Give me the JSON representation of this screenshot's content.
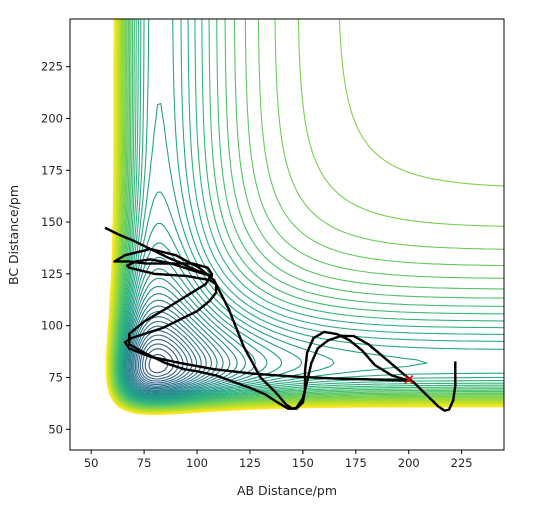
{
  "chart_data": {
    "type": "contour",
    "title": "",
    "xlabel": "AB Distance/pm",
    "ylabel": "BC Distance/pm",
    "xlim": [
      40,
      245
    ],
    "ylim": [
      40,
      248
    ],
    "xticks": [
      50,
      75,
      100,
      125,
      150,
      175,
      200,
      225
    ],
    "yticks": [
      50,
      75,
      100,
      125,
      150,
      175,
      200,
      225
    ],
    "grid": false,
    "legend": "none",
    "colormap": "viridis",
    "contour_levels": 64,
    "contour_field": "LEPS potential energy surface",
    "trajectory": {
      "color": "#000000",
      "marker": "small dots",
      "points": [
        [
          57,
          147
        ],
        [
          63,
          144
        ],
        [
          70,
          141
        ],
        [
          78,
          137
        ],
        [
          86,
          133
        ],
        [
          93,
          130
        ],
        [
          99,
          127
        ],
        [
          104,
          125
        ],
        [
          107,
          124
        ],
        [
          100,
          126
        ],
        [
          88,
          130
        ],
        [
          78,
          132
        ],
        [
          71,
          131
        ],
        [
          67,
          129
        ],
        [
          68,
          128
        ],
        [
          80,
          125
        ],
        [
          95,
          124
        ],
        [
          106,
          122
        ],
        [
          109,
          120
        ],
        [
          109,
          116
        ],
        [
          106,
          112
        ],
        [
          100,
          107
        ],
        [
          92,
          103
        ],
        [
          84,
          99
        ],
        [
          75,
          96
        ],
        [
          69,
          94
        ],
        [
          66,
          92
        ],
        [
          68,
          89
        ],
        [
          78,
          85
        ],
        [
          92,
          82
        ],
        [
          108,
          79
        ],
        [
          125,
          77
        ],
        [
          145,
          75.5
        ],
        [
          165,
          74.5
        ],
        [
          185,
          74
        ],
        [
          200,
          73.5
        ],
        [
          192,
          76
        ],
        [
          184,
          81
        ],
        [
          178,
          88
        ],
        [
          172,
          93
        ],
        [
          166,
          96
        ],
        [
          160,
          97
        ],
        [
          155,
          94
        ],
        [
          152,
          87
        ],
        [
          151,
          78
        ],
        [
          151,
          69
        ],
        [
          150,
          63
        ],
        [
          147,
          60
        ],
        [
          143,
          60
        ],
        [
          138,
          63
        ],
        [
          132,
          67
        ],
        [
          125,
          70
        ],
        [
          117,
          73
        ],
        [
          109,
          76
        ],
        [
          100,
          78
        ],
        [
          94,
          79
        ],
        [
          85,
          82
        ],
        [
          75,
          87
        ],
        [
          68,
          91
        ],
        [
          68,
          96
        ],
        [
          75,
          102
        ],
        [
          85,
          108
        ],
        [
          96,
          115
        ],
        [
          104,
          120
        ],
        [
          107,
          125
        ],
        [
          105,
          128
        ],
        [
          98,
          130
        ],
        [
          87,
          130
        ],
        [
          76,
          130
        ],
        [
          68,
          131
        ],
        [
          61,
          131
        ],
        [
          66,
          134
        ],
        [
          78,
          137
        ],
        [
          90,
          134
        ],
        [
          101,
          128
        ],
        [
          108,
          122
        ],
        [
          115,
          108
        ],
        [
          122,
          90
        ],
        [
          130,
          75
        ],
        [
          137,
          68
        ],
        [
          142,
          62
        ],
        [
          145,
          60
        ],
        [
          147,
          60.5
        ],
        [
          150,
          65
        ],
        [
          152,
          73
        ],
        [
          154,
          82
        ],
        [
          157,
          89
        ],
        [
          162,
          93
        ],
        [
          168,
          95
        ],
        [
          174,
          95
        ],
        [
          181,
          91
        ],
        [
          188,
          85
        ],
        [
          196,
          78
        ],
        [
          203,
          72
        ],
        [
          209,
          66
        ],
        [
          214,
          61
        ],
        [
          217,
          59
        ],
        [
          219,
          59.5
        ],
        [
          221,
          64
        ],
        [
          222,
          71
        ],
        [
          222,
          78
        ],
        [
          222,
          83
        ]
      ]
    },
    "marker": {
      "x": 200,
      "y": 74,
      "symbol": "x",
      "color": "#ff0000"
    }
  }
}
